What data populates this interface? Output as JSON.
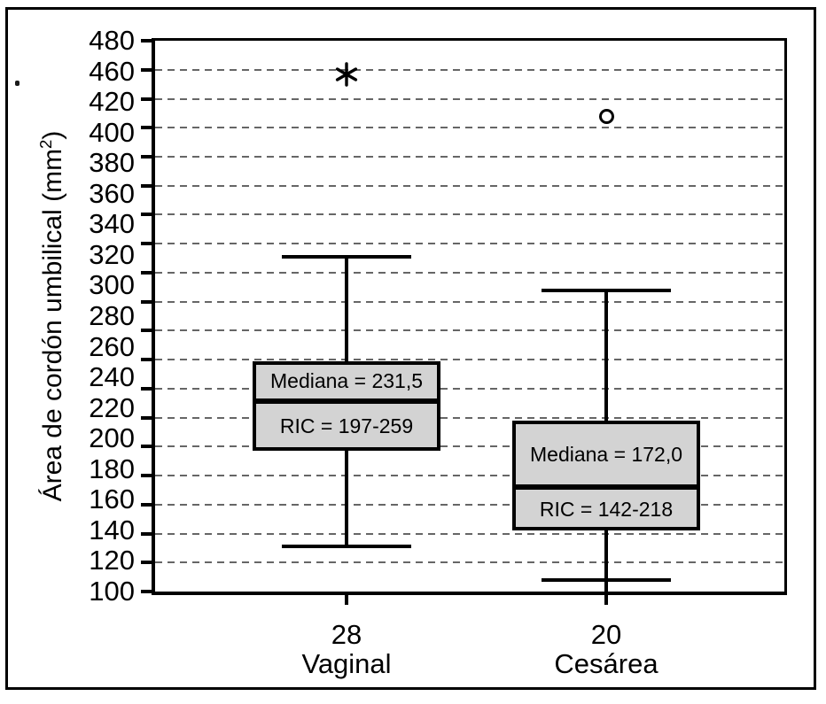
{
  "figure": {
    "background": "#ffffff",
    "frame_color": "#000000"
  },
  "chart_data": {
    "type": "boxplot",
    "title": "",
    "ylabel": "Área de cordón umbilical (mm²)",
    "ylabel_main": "Área de cordón umbilical (mm",
    "ylabel_sup": "2",
    "ylabel_end": ")",
    "xlabel": "",
    "y_axis": {
      "min": 100,
      "max": 480,
      "tick_step": 20,
      "tick_labels": [
        "480",
        "460",
        "420",
        "400",
        "380",
        "360",
        "340",
        "320",
        "300",
        "280",
        "260",
        "240",
        "220",
        "200",
        "180",
        "160",
        "140",
        "120",
        "100"
      ],
      "gridline_levels": 20,
      "grid": true,
      "grid_style": "dashed",
      "grid_color": "#666666",
      "note": "printed label sequence skips 440 as in source figure"
    },
    "x_axis": {
      "categories": [
        "Vaginal",
        "Cesárea"
      ],
      "counts": [
        "28",
        "20"
      ]
    },
    "groups": [
      {
        "label": "Vaginal",
        "n": "28",
        "median": 231.5,
        "q1": 197,
        "q3": 259,
        "whisker_low": 131,
        "whisker_high": 331,
        "outliers": [
          {
            "value": 457,
            "symbol": "asterisk",
            "type": "extreme"
          }
        ],
        "median_label": "Mediana = 231,5",
        "iqr_label": "RIC = 197-259"
      },
      {
        "label": "Cesárea",
        "n": "20",
        "median": 172.0,
        "q1": 142,
        "q3": 218,
        "whisker_low": 108,
        "whisker_high": 308,
        "outliers": [
          {
            "value": 428,
            "symbol": "circle",
            "type": "mild"
          }
        ],
        "median_label": "Mediana = 172,0",
        "iqr_label": "RIC = 142-218"
      }
    ],
    "style": {
      "box_fill": "#d3d3d3",
      "box_border": "#000000",
      "median_color": "#000000",
      "outlier_color": "#000000"
    },
    "legend": {
      "visible": false
    }
  }
}
